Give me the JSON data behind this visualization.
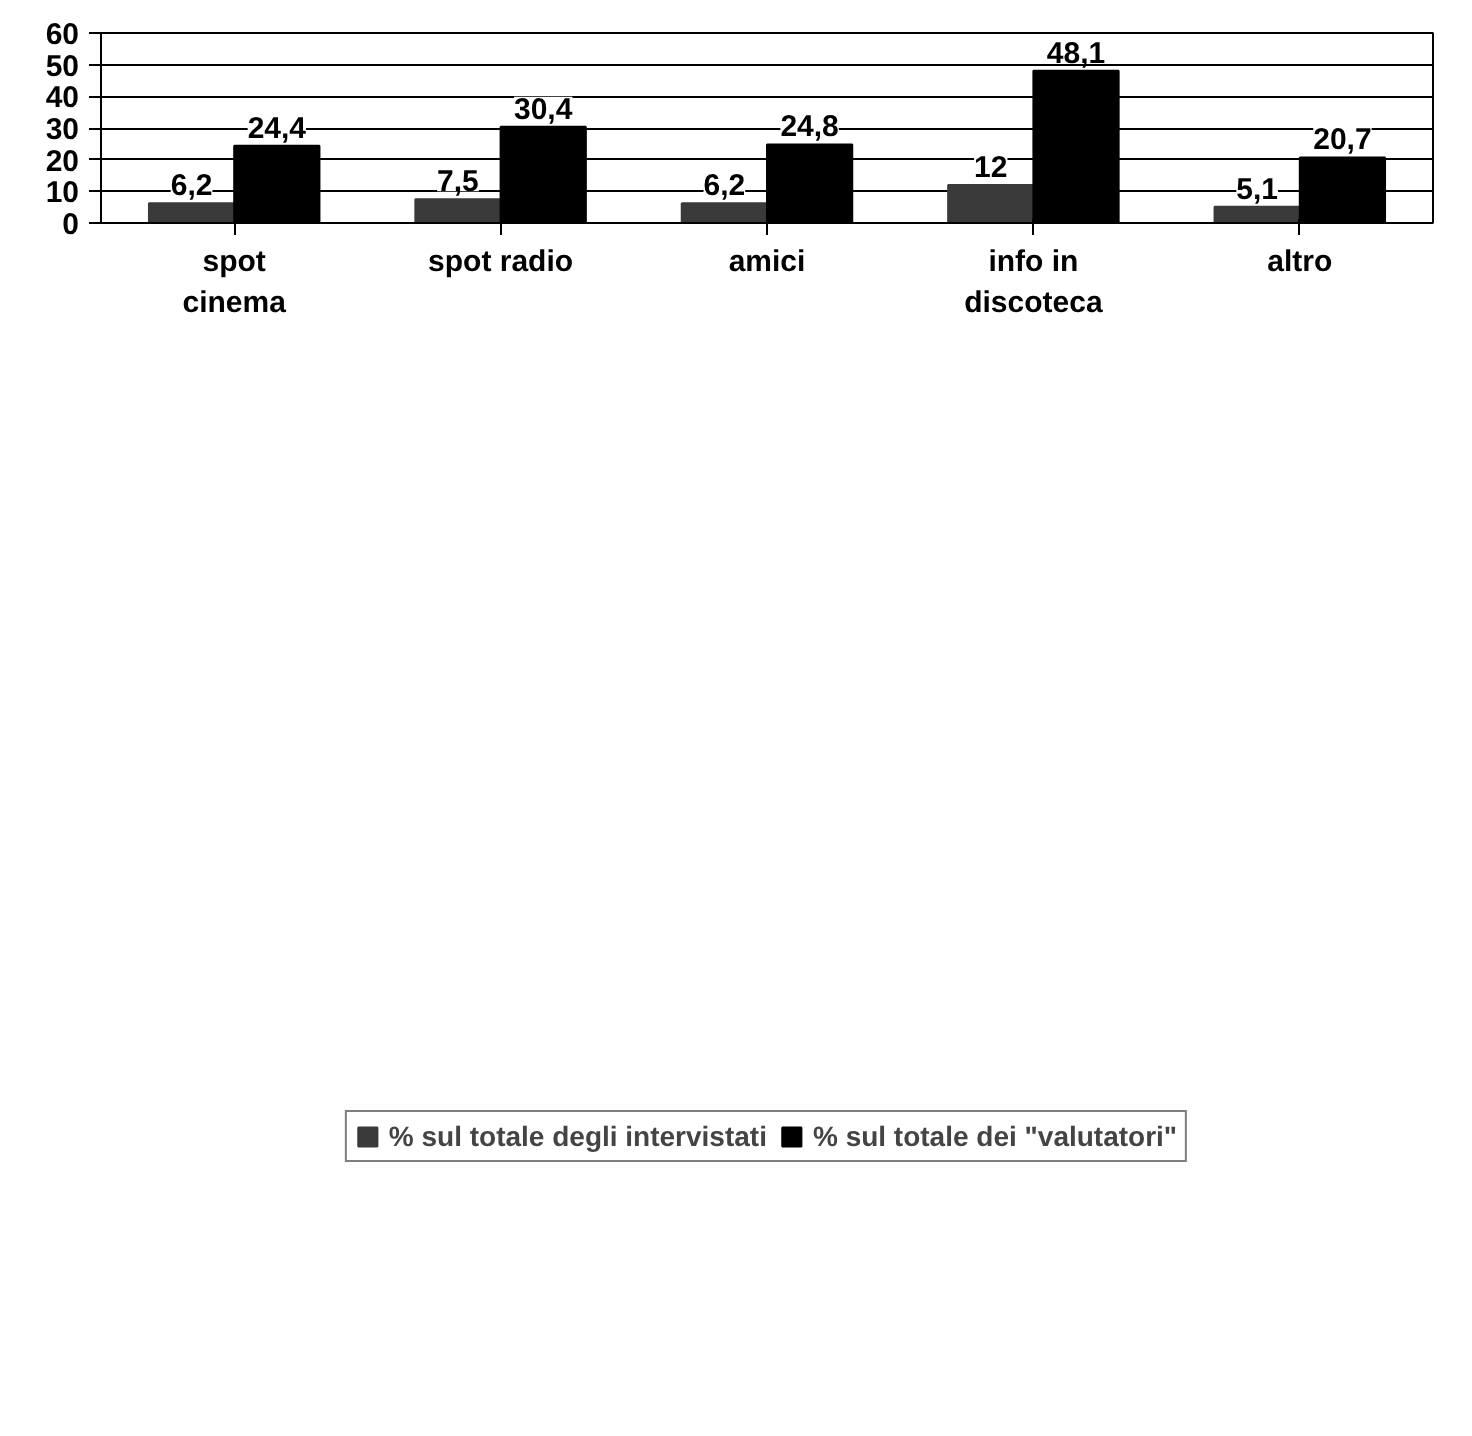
{
  "chart_data": {
    "type": "bar",
    "categories": [
      "spot\ncinema",
      "spot radio",
      "amici",
      "info in\ndiscoteca",
      "altro"
    ],
    "series": [
      {
        "name": "% sul totale degli intervistati",
        "color": "#3a3a3a",
        "values": [
          6.2,
          7.5,
          6.2,
          12,
          5.1
        ],
        "value_labels": [
          "6,2",
          "7,5",
          "6,2",
          "12",
          "5,1"
        ]
      },
      {
        "name": "% sul totale dei \"valutatori\"",
        "color": "#000000",
        "values": [
          24.4,
          30.4,
          24.8,
          48.1,
          20.7
        ],
        "value_labels": [
          "24,4",
          "30,4",
          "24,8",
          "48,1",
          "20,7"
        ]
      }
    ],
    "ylim": [
      0,
      60
    ],
    "yticks": [
      0,
      10,
      20,
      30,
      40,
      50,
      60
    ],
    "grid": "y",
    "legend": "bottom"
  }
}
